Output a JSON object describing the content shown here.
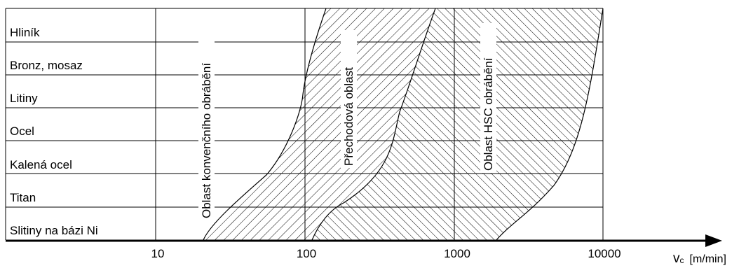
{
  "materials": [
    "Hliník",
    "Bronz, mosaz",
    "Litiny",
    "Ocel",
    "Kalená ocel",
    "Titan",
    "Slitiny na bázi Ni"
  ],
  "x_ticks": [
    "10",
    "100",
    "1000",
    "10000"
  ],
  "axis_label": {
    "symbol": "v",
    "subscript": "c",
    "unit": "[m/min]"
  },
  "region_labels": {
    "conventional": "Oblast konvenčního obrábění",
    "transition": "Přechodová oblast",
    "hsc": "Oblast HSC obrábění"
  },
  "colors": {
    "ink": "#000000",
    "grid": "#000000",
    "background": "#ffffff"
  }
}
